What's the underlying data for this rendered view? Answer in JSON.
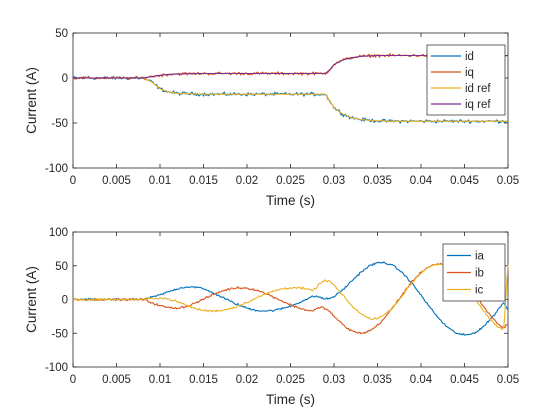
{
  "chart_data": [
    {
      "type": "line",
      "xlabel": "Time (s)",
      "ylabel": "Current (A)",
      "xlim": [
        0,
        0.05
      ],
      "ylim": [
        -100,
        50
      ],
      "xticks": [
        0,
        0.005,
        0.01,
        0.015,
        0.02,
        0.025,
        0.03,
        0.035,
        0.04,
        0.045,
        0.05
      ],
      "xtick_labels": [
        "0",
        "0.005",
        "0.01",
        "0.015",
        "0.02",
        "0.025",
        "0.03",
        "0.035",
        "0.04",
        "0.045",
        "0.05"
      ],
      "yticks": [
        -100,
        -50,
        0,
        50
      ],
      "ytick_labels": [
        "-100",
        "-50",
        "0",
        "50"
      ],
      "legend_position": "top-right",
      "grid": false,
      "series": [
        {
          "name": "id",
          "color": "#0072BD",
          "noise": 1.6,
          "x": [
            0,
            0.008,
            0.009,
            0.0095,
            0.01,
            0.011,
            0.012,
            0.015,
            0.02,
            0.029,
            0.0295,
            0.03,
            0.031,
            0.032,
            0.033,
            0.034,
            0.036,
            0.04,
            0.05
          ],
          "y": [
            0,
            0,
            -4,
            -8,
            -12,
            -15.5,
            -17,
            -18,
            -18,
            -18,
            -25,
            -33,
            -40,
            -44,
            -46,
            -47,
            -48,
            -48,
            -48
          ]
        },
        {
          "name": "iq",
          "color": "#D95319",
          "noise": 1.4,
          "x": [
            0,
            0.008,
            0.009,
            0.01,
            0.011,
            0.012,
            0.015,
            0.02,
            0.029,
            0.0295,
            0.03,
            0.031,
            0.032,
            0.033,
            0.035,
            0.04,
            0.05
          ],
          "y": [
            0,
            0,
            1.5,
            3,
            4,
            4.5,
            5,
            5,
            5,
            9,
            15,
            20,
            22.5,
            24,
            25,
            25,
            25
          ]
        },
        {
          "name": "id ref",
          "color": "#EDB120",
          "noise": 0,
          "x": [
            0,
            0.008,
            0.009,
            0.0095,
            0.01,
            0.011,
            0.012,
            0.015,
            0.02,
            0.029,
            0.0295,
            0.03,
            0.031,
            0.032,
            0.033,
            0.034,
            0.036,
            0.04,
            0.05
          ],
          "y": [
            0,
            0,
            -4,
            -8,
            -12,
            -15.5,
            -17,
            -18,
            -18,
            -18,
            -25,
            -33,
            -40,
            -44,
            -46,
            -47,
            -48,
            -48,
            -48
          ]
        },
        {
          "name": "iq ref",
          "color": "#7E2F8E",
          "noise": 0,
          "x": [
            0,
            0.008,
            0.009,
            0.01,
            0.011,
            0.012,
            0.015,
            0.02,
            0.029,
            0.0295,
            0.03,
            0.031,
            0.032,
            0.033,
            0.035,
            0.04,
            0.05
          ],
          "y": [
            0,
            0,
            1.5,
            3,
            4,
            4.5,
            5,
            5,
            5,
            9,
            15,
            20,
            22.5,
            24,
            25,
            25,
            25
          ]
        }
      ]
    },
    {
      "type": "line",
      "xlabel": "Time (s)",
      "ylabel": "Current (A)",
      "xlim": [
        0,
        0.05
      ],
      "ylim": [
        -100,
        100
      ],
      "xticks": [
        0,
        0.005,
        0.01,
        0.015,
        0.02,
        0.025,
        0.03,
        0.035,
        0.04,
        0.045,
        0.05
      ],
      "xtick_labels": [
        "0",
        "0.005",
        "0.01",
        "0.015",
        "0.02",
        "0.025",
        "0.03",
        "0.035",
        "0.04",
        "0.045",
        "0.05"
      ],
      "yticks": [
        -100,
        -50,
        0,
        50,
        100
      ],
      "ytick_labels": [
        "-100",
        "-50",
        "0",
        "50",
        "100"
      ],
      "legend_position": "top-right",
      "grid": false,
      "series": [
        {
          "name": "ia",
          "color": "#0072BD",
          "noise": 1.3,
          "x": [
            0,
            0.008,
            0.0085,
            0.009,
            0.0095,
            0.01,
            0.0105,
            0.011,
            0.0115,
            0.012,
            0.0125,
            0.013,
            0.0135,
            0.014,
            0.0145,
            0.015,
            0.0155,
            0.016,
            0.0165,
            0.017,
            0.0175,
            0.018,
            0.0185,
            0.019,
            0.0195,
            0.02,
            0.0205,
            0.021,
            0.0215,
            0.022,
            0.0225,
            0.023,
            0.0235,
            0.024,
            0.0245,
            0.025,
            0.0255,
            0.026,
            0.0265,
            0.027,
            0.0275,
            0.028,
            0.0285,
            0.029,
            0.0295,
            0.03,
            0.0305,
            0.031,
            0.0315,
            0.032,
            0.0325,
            0.033,
            0.0335,
            0.034,
            0.0345,
            0.035,
            0.0355,
            0.036,
            0.0365,
            0.037,
            0.0375,
            0.038,
            0.0385,
            0.039,
            0.0395,
            0.04,
            0.0405,
            0.041,
            0.0415,
            0.042,
            0.0425,
            0.043,
            0.0435,
            0.044,
            0.0445,
            0.045,
            0.0455,
            0.046,
            0.0465,
            0.047,
            0.0475,
            0.048,
            0.0485,
            0.049,
            0.0495,
            0.05
          ],
          "y": [
            0,
            0,
            1.5,
            3.1,
            4.8,
            6.8,
            9.0,
            11.5,
            13.8,
            15.9,
            17.5,
            18.5,
            18.9,
            18.5,
            17.4,
            15.6,
            13.2,
            10.5,
            7.4,
            4.3,
            1.1,
            -2.0,
            -5.1,
            -7.9,
            -10.5,
            -12.7,
            -14.5,
            -15.8,
            -16.6,
            -16.9,
            -16.8,
            -16.2,
            -15.1,
            -13.6,
            -11.8,
            -9.6,
            -7.1,
            -4.4,
            -1.6,
            1.2,
            4.0,
            5.0,
            2.5,
            0.8,
            1.5,
            4.5,
            8.8,
            14.4,
            20.5,
            26.9,
            33.3,
            39.3,
            44.6,
            49.0,
            52.2,
            54.2,
            54.8,
            54.0,
            51.8,
            48.3,
            43.5,
            37.6,
            30.8,
            23.2,
            15.0,
            6.4,
            -2.4,
            -11.1,
            -19.5,
            -27.3,
            -34.4,
            -40.5,
            -45.5,
            -49.2,
            -51.6,
            -52.6,
            -52.1,
            -50.1,
            -46.7,
            -41.9,
            -36.0,
            -29.0,
            -21.2,
            -12.8,
            -4.0,
            -16.0
          ]
        },
        {
          "name": "ib",
          "color": "#D95319",
          "noise": 1.3,
          "x": [
            0,
            0.008,
            0.0085,
            0.009,
            0.0095,
            0.01,
            0.0105,
            0.011,
            0.0115,
            0.012,
            0.0125,
            0.013,
            0.0135,
            0.014,
            0.0145,
            0.015,
            0.0155,
            0.016,
            0.0165,
            0.017,
            0.0175,
            0.018,
            0.0185,
            0.019,
            0.0195,
            0.02,
            0.0205,
            0.021,
            0.0215,
            0.022,
            0.0225,
            0.023,
            0.0235,
            0.024,
            0.0245,
            0.025,
            0.0255,
            0.026,
            0.0265,
            0.027,
            0.0275,
            0.028,
            0.0285,
            0.029,
            0.0295,
            0.03,
            0.0305,
            0.031,
            0.0315,
            0.032,
            0.0325,
            0.033,
            0.0335,
            0.034,
            0.0345,
            0.035,
            0.0355,
            0.036,
            0.0365,
            0.037,
            0.0375,
            0.038,
            0.0385,
            0.039,
            0.0395,
            0.04,
            0.0405,
            0.041,
            0.0415,
            0.042,
            0.0425,
            0.043,
            0.0435,
            0.044,
            0.0445,
            0.045,
            0.0455,
            0.046,
            0.0465,
            0.047,
            0.0475,
            0.048,
            0.0485,
            0.049,
            0.0495,
            0.05
          ],
          "y": [
            0,
            0,
            -2.0,
            -4.5,
            -7.0,
            -9.0,
            -10.8,
            -12.0,
            -12.6,
            -12.5,
            -11.7,
            -10.2,
            -8.1,
            -5.5,
            -2.6,
            0.5,
            3.6,
            6.6,
            9.4,
            11.9,
            14.0,
            15.6,
            16.7,
            17.3,
            17.3,
            16.8,
            15.7,
            14.1,
            12.0,
            9.6,
            6.9,
            4.0,
            1.0,
            -2.0,
            -5.0,
            -7.8,
            -10.4,
            -12.7,
            -14.6,
            -16.0,
            -17.0,
            -14.0,
            -11.5,
            -13.0,
            -18.0,
            -24.7,
            -31.2,
            -37.2,
            -42.3,
            -46.2,
            -48.7,
            -49.7,
            -49.1,
            -46.9,
            -43.2,
            -38.1,
            -31.8,
            -24.5,
            -16.4,
            -7.8,
            1.1,
            10.0,
            18.6,
            26.7,
            34.0,
            40.3,
            45.4,
            49.2,
            51.6,
            52.5,
            51.8,
            49.6,
            46.0,
            41.0,
            34.8,
            27.6,
            19.6,
            11.0,
            2.0,
            -7.0,
            -15.8,
            -24.0,
            -31.4,
            -37.6,
            -42.4,
            -36.0
          ]
        },
        {
          "name": "ic",
          "color": "#EDB120",
          "noise": 1.3,
          "x": [
            0,
            0.008,
            0.0085,
            0.009,
            0.0095,
            0.01,
            0.0105,
            0.011,
            0.0115,
            0.012,
            0.0125,
            0.013,
            0.0135,
            0.014,
            0.0145,
            0.015,
            0.0155,
            0.016,
            0.0165,
            0.017,
            0.0175,
            0.018,
            0.0185,
            0.019,
            0.0195,
            0.02,
            0.0205,
            0.021,
            0.0215,
            0.022,
            0.0225,
            0.023,
            0.0235,
            0.024,
            0.0245,
            0.025,
            0.0255,
            0.026,
            0.0265,
            0.027,
            0.0275,
            0.028,
            0.0285,
            0.029,
            0.0295,
            0.03,
            0.0305,
            0.031,
            0.0315,
            0.032,
            0.0325,
            0.033,
            0.0335,
            0.034,
            0.0345,
            0.035,
            0.0355,
            0.036,
            0.0365,
            0.037,
            0.0375,
            0.038,
            0.0385,
            0.039,
            0.0395,
            0.04,
            0.0405,
            0.041,
            0.0415,
            0.042,
            0.0425,
            0.043,
            0.0435,
            0.044,
            0.0445,
            0.045,
            0.0455,
            0.046,
            0.0465,
            0.047,
            0.0475,
            0.048,
            0.0485,
            0.049,
            0.0495,
            0.05
          ],
          "y": [
            0,
            0,
            0.5,
            1.4,
            2.2,
            2.2,
            1.8,
            0.5,
            -1.2,
            -3.4,
            -5.8,
            -8.3,
            -10.8,
            -13.0,
            -14.8,
            -16.1,
            -16.8,
            -17.1,
            -16.8,
            -16.2,
            -15.1,
            -13.6,
            -11.6,
            -9.4,
            -6.8,
            -4.1,
            -1.2,
            1.7,
            4.6,
            7.3,
            9.9,
            12.2,
            14.1,
            15.6,
            16.8,
            17.4,
            17.5,
            17.1,
            16.2,
            14.8,
            13.0,
            18.0,
            25.0,
            28.0,
            27.0,
            21.0,
            13.5,
            6.0,
            -1.4,
            -8.5,
            -14.9,
            -20.3,
            -24.7,
            -27.5,
            -28.5,
            -27.7,
            -25.0,
            -20.6,
            -14.8,
            -7.8,
            0.0,
            8.4,
            16.9,
            25.0,
            32.6,
            39.3,
            44.8,
            48.9,
            51.5,
            52.4,
            51.6,
            49.0,
            44.8,
            39.1,
            32.1,
            24.0,
            15.0,
            5.5,
            -4.0,
            -13.3,
            -22.0,
            -29.8,
            -36.3,
            -41.3,
            -44.5,
            52.0
          ]
        }
      ]
    }
  ]
}
